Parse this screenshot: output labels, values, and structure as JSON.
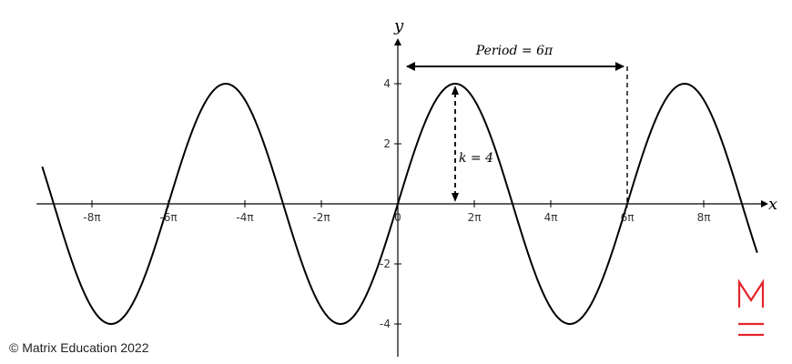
{
  "chart_data": {
    "type": "line",
    "function": "y = 4 sin(x/3)",
    "amplitude": 4,
    "period_multiple_of_pi": 6,
    "xlim_multiple_of_pi": [
      -9.4,
      9.4
    ],
    "ylim": [
      -4.7,
      5.2
    ],
    "x_ticks": [
      {
        "v": -8,
        "label": "-8π"
      },
      {
        "v": -6,
        "label": "-6π"
      },
      {
        "v": -4,
        "label": "-4π"
      },
      {
        "v": -2,
        "label": "-2π"
      },
      {
        "v": 0,
        "label": "0"
      },
      {
        "v": 2,
        "label": "2π"
      },
      {
        "v": 4,
        "label": "4π"
      },
      {
        "v": 6,
        "label": "6π"
      },
      {
        "v": 8,
        "label": "8π"
      }
    ],
    "y_ticks": [
      {
        "v": 4,
        "label": "4"
      },
      {
        "v": 2,
        "label": "2"
      },
      {
        "v": -2,
        "label": "-2"
      },
      {
        "v": -4,
        "label": "-4"
      }
    ],
    "xlabel": "x",
    "ylabel": "y",
    "annotations": {
      "period": "Period = 6π",
      "amplitude": "k = 4"
    }
  },
  "brand": {
    "color": "#e3242b",
    "icon": "matrix-logo-icon"
  },
  "footer": {
    "copyright": "© Matrix Education 2022"
  }
}
